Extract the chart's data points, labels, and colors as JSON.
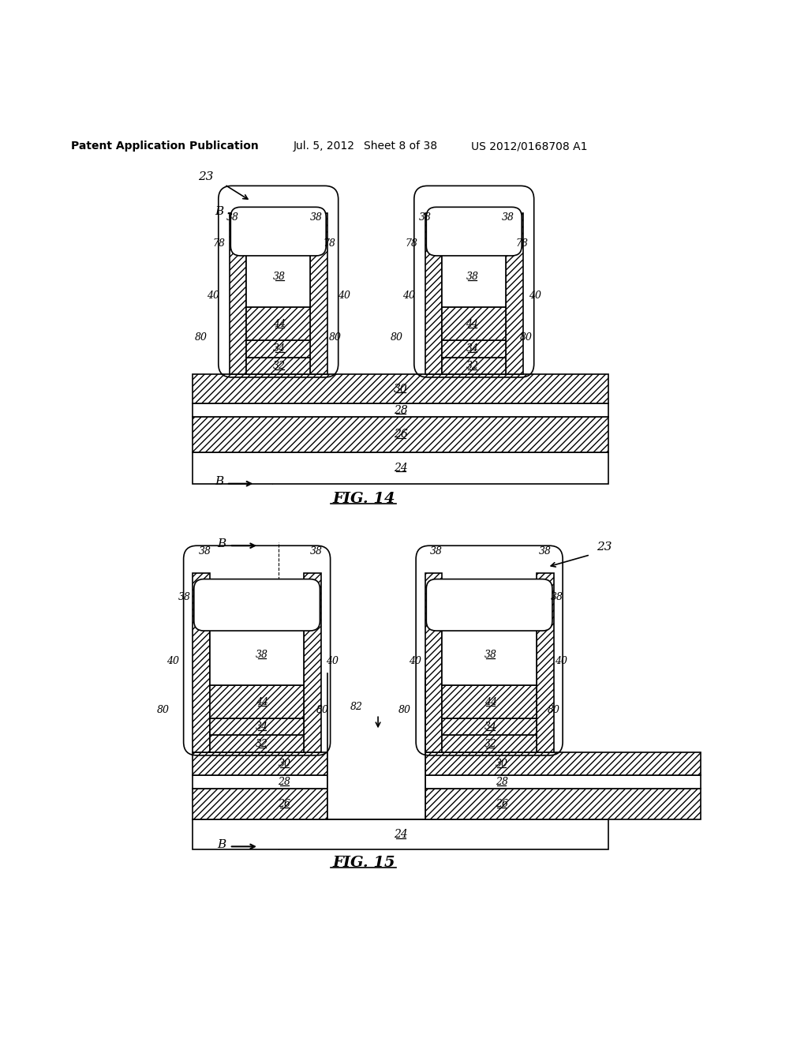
{
  "bg_color": "#ffffff",
  "header_text": "Patent Application Publication",
  "header_date": "Jul. 5, 2012",
  "header_sheet": "Sheet 8 of 38",
  "header_patent": "US 2012/0168708 A1",
  "fig14_caption": "FIG. 14",
  "fig15_caption": "FIG. 15",
  "line_color": "#000000"
}
